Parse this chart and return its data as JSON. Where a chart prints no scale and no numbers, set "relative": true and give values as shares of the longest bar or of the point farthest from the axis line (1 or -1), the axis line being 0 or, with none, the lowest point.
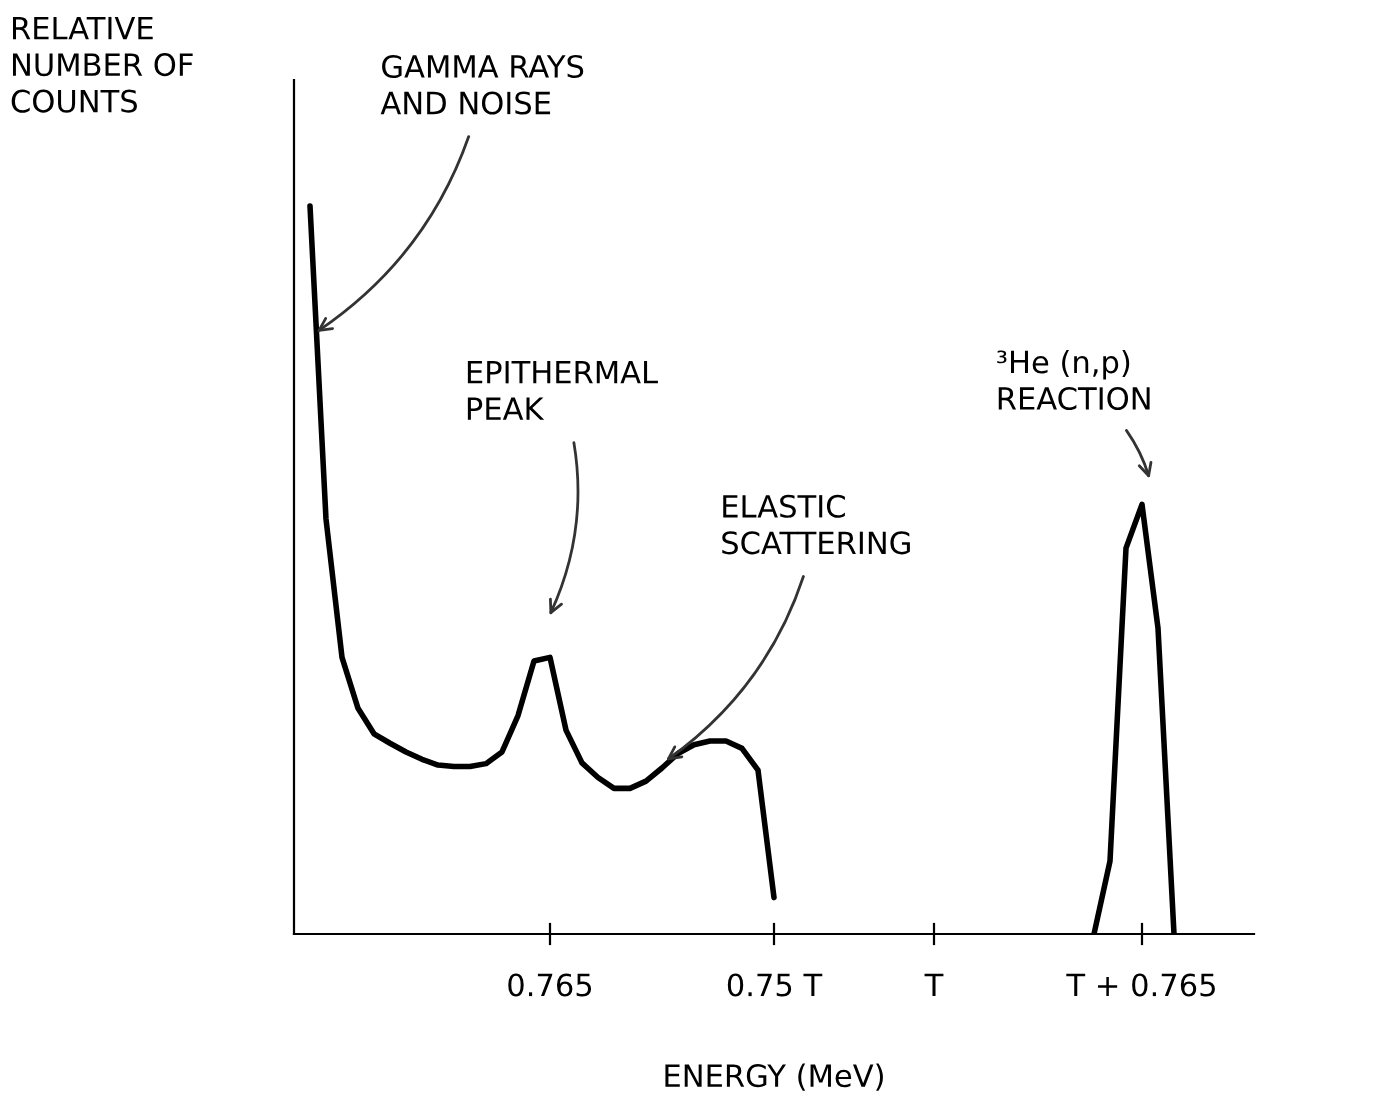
{
  "chart_data": {
    "type": "line",
    "relative": true,
    "xlabel": "ENERGY (MeV)",
    "ylabel": "RELATIVE\nNUMBER OF\nCOUNTS",
    "categories": [
      null,
      null,
      null,
      null,
      null,
      null,
      null,
      null,
      null,
      null,
      null,
      null,
      null,
      null,
      null,
      null,
      "0.765",
      null,
      null,
      null,
      null,
      null,
      null,
      null,
      null,
      null,
      null,
      null,
      null,
      null,
      "0.75 T",
      null,
      null,
      null,
      null,
      null,
      null,
      null,
      null,
      null,
      "T",
      null,
      null,
      null,
      null,
      null,
      null,
      null,
      null,
      null,
      null,
      null,
      null,
      "T + 0.765",
      null,
      null,
      null,
      null,
      null,
      null,
      null
    ],
    "series": [
      {
        "color": "#000000",
        "values": [
          null,
          1.0,
          0.57,
          0.38,
          0.31,
          0.275,
          0.262,
          0.25,
          0.24,
          0.232,
          0.23,
          0.23,
          0.234,
          0.25,
          0.3,
          0.375,
          0.38,
          0.28,
          0.235,
          0.215,
          0.2,
          0.2,
          0.21,
          0.228,
          0.248,
          0.26,
          0.265,
          0.265,
          0.255,
          0.225,
          0.05,
          null,
          null,
          null,
          null,
          null,
          null,
          null,
          null,
          null,
          null,
          null,
          null,
          null,
          null,
          null,
          null,
          null,
          null,
          null,
          0,
          0.1,
          0.53,
          0.59,
          0.42,
          0,
          null,
          null,
          null,
          null,
          null
        ]
      }
    ],
    "annotations": [
      "GAMMA RAYS\nAND NOISE",
      "EPITHERMAL\nPEAK",
      "ELASTIC\nSCATTERING",
      "³He (n,p)\nREACTION"
    ],
    "grid": false,
    "legend": false,
    "marker": "none",
    "line_style": "solid"
  }
}
